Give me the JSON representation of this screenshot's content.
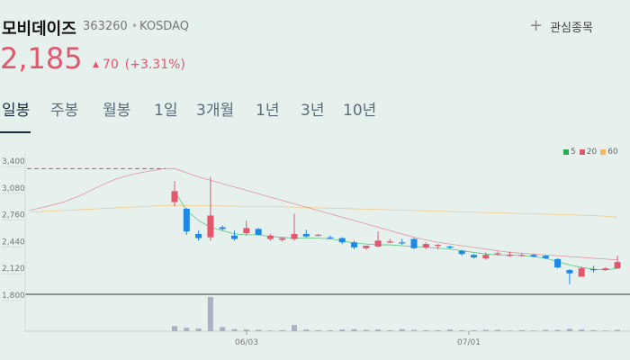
{
  "stock": {
    "name": "모비데이즈",
    "code": "363260",
    "market": "KOSDAQ"
  },
  "favorite_label": "관심종목",
  "price": "2,185",
  "change": {
    "arrow": "▲",
    "amount": "70",
    "percent": "(+3.31%)",
    "color": "#e0576e"
  },
  "tabs": [
    "일봉",
    "주봉",
    "월봉",
    "1일",
    "3개월",
    "1년",
    "3년",
    "10년"
  ],
  "active_tab": "일봉",
  "chart_data": {
    "type": "candlestick",
    "y_ticks": [
      "3,400",
      "3,080",
      "2,760",
      "2,440",
      "2,120",
      "1,800"
    ],
    "x_ticks": [
      "06/03",
      "07/01"
    ],
    "legend": [
      {
        "label": "5",
        "color": "#22b14c"
      },
      {
        "label": "20",
        "color": "#e0576e"
      },
      {
        "label": "60",
        "color": "#f5b75a"
      }
    ],
    "ylim": [
      1800,
      3400
    ],
    "prior_close": 3300,
    "candles": [
      {
        "o": 2900,
        "h": 3150,
        "l": 2850,
        "c": 3030
      },
      {
        "o": 2820,
        "h": 2830,
        "l": 2510,
        "c": 2550
      },
      {
        "o": 2520,
        "h": 2560,
        "l": 2440,
        "c": 2470
      },
      {
        "o": 2480,
        "h": 3200,
        "l": 2440,
        "c": 2740
      },
      {
        "o": 2600,
        "h": 2620,
        "l": 2560,
        "c": 2580
      },
      {
        "o": 2500,
        "h": 2560,
        "l": 2440,
        "c": 2460
      },
      {
        "o": 2530,
        "h": 2680,
        "l": 2500,
        "c": 2590
      },
      {
        "o": 2580,
        "h": 2590,
        "l": 2500,
        "c": 2510
      },
      {
        "o": 2460,
        "h": 2520,
        "l": 2440,
        "c": 2500
      },
      {
        "o": 2450,
        "h": 2480,
        "l": 2430,
        "c": 2470
      },
      {
        "o": 2460,
        "h": 2760,
        "l": 2440,
        "c": 2520
      },
      {
        "o": 2520,
        "h": 2570,
        "l": 2480,
        "c": 2490
      },
      {
        "o": 2500,
        "h": 2520,
        "l": 2490,
        "c": 2510
      },
      {
        "o": 2480,
        "h": 2500,
        "l": 2460,
        "c": 2470
      },
      {
        "o": 2470,
        "h": 2480,
        "l": 2400,
        "c": 2420
      },
      {
        "o": 2420,
        "h": 2440,
        "l": 2340,
        "c": 2360
      },
      {
        "o": 2350,
        "h": 2380,
        "l": 2330,
        "c": 2380
      },
      {
        "o": 2370,
        "h": 2550,
        "l": 2360,
        "c": 2440
      },
      {
        "o": 2420,
        "h": 2460,
        "l": 2410,
        "c": 2430
      },
      {
        "o": 2420,
        "h": 2460,
        "l": 2390,
        "c": 2410
      },
      {
        "o": 2460,
        "h": 2470,
        "l": 2340,
        "c": 2350
      },
      {
        "o": 2360,
        "h": 2420,
        "l": 2340,
        "c": 2400
      },
      {
        "o": 2380,
        "h": 2400,
        "l": 2340,
        "c": 2390
      },
      {
        "o": 2370,
        "h": 2380,
        "l": 2340,
        "c": 2360
      },
      {
        "o": 2320,
        "h": 2330,
        "l": 2260,
        "c": 2280
      },
      {
        "o": 2270,
        "h": 2280,
        "l": 2230,
        "c": 2240
      },
      {
        "o": 2230,
        "h": 2300,
        "l": 2210,
        "c": 2270
      },
      {
        "o": 2280,
        "h": 2310,
        "l": 2260,
        "c": 2290
      },
      {
        "o": 2260,
        "h": 2310,
        "l": 2250,
        "c": 2270
      },
      {
        "o": 2260,
        "h": 2290,
        "l": 2250,
        "c": 2270
      },
      {
        "o": 2270,
        "h": 2280,
        "l": 2240,
        "c": 2250
      },
      {
        "o": 2260,
        "h": 2270,
        "l": 2220,
        "c": 2230
      },
      {
        "o": 2220,
        "h": 2230,
        "l": 2110,
        "c": 2120
      },
      {
        "o": 2090,
        "h": 2100,
        "l": 1920,
        "c": 2050
      },
      {
        "o": 2010,
        "h": 2130,
        "l": 2010,
        "c": 2110
      },
      {
        "o": 2100,
        "h": 2140,
        "l": 2060,
        "c": 2090
      },
      {
        "o": 2090,
        "h": 2120,
        "l": 2080,
        "c": 2110
      },
      {
        "o": 2110,
        "h": 2260,
        "l": 2100,
        "c": 2185
      }
    ],
    "ma5": [
      3030,
      2800,
      2680,
      2600,
      2560,
      2520,
      2510,
      2510,
      2490,
      2480,
      2470,
      2470,
      2470,
      2460,
      2440,
      2410,
      2400,
      2390,
      2390,
      2380,
      2370,
      2360,
      2350,
      2340,
      2320,
      2300,
      2280,
      2270,
      2270,
      2260,
      2250,
      2230,
      2190,
      2150,
      2120,
      2100,
      2090,
      2110
    ],
    "ma20": [
      3300,
      3250,
      3200,
      3160,
      3120,
      3080,
      3040,
      3000,
      2960,
      2920,
      2880,
      2840,
      2800,
      2760,
      2720,
      2680,
      2640,
      2600,
      2560,
      2520,
      2480,
      2450,
      2420,
      2400,
      2380,
      2360,
      2340,
      2320,
      2300,
      2290,
      2280,
      2270,
      2260,
      2250,
      2240,
      2230,
      2220,
      2210
    ],
    "ma60": [
      2860,
      2860,
      2858,
      2856,
      2854,
      2852,
      2850,
      2848,
      2846,
      2844,
      2840,
      2836,
      2832,
      2828,
      2824,
      2820,
      2816,
      2812,
      2808,
      2804,
      2800,
      2796,
      2792,
      2788,
      2784,
      2780,
      2776,
      2772,
      2768,
      2764,
      2760,
      2756,
      2752,
      2748,
      2744,
      2740,
      2730,
      2720
    ],
    "pre_ma20": [
      2800,
      2850,
      2900,
      2980,
      3080,
      3170,
      3230,
      3270,
      3300
    ],
    "pre_ma60": [
      2780,
      2790,
      2800,
      2810,
      2820,
      2830,
      2840,
      2850,
      2860
    ],
    "volume": [
      0.15,
      0.1,
      0.08,
      1.0,
      0.12,
      0.06,
      0.05,
      0.04,
      0.02,
      0.03,
      0.18,
      0.05,
      0.03,
      0.03,
      0.05,
      0.06,
      0.04,
      0.05,
      0.03,
      0.06,
      0.04,
      0.03,
      0.03,
      0.05,
      0.03,
      0.03,
      0.04,
      0.04,
      0.02,
      0.03,
      0.02,
      0.04,
      0.04,
      0.07,
      0.05,
      0.03,
      0.02,
      0.04
    ]
  }
}
